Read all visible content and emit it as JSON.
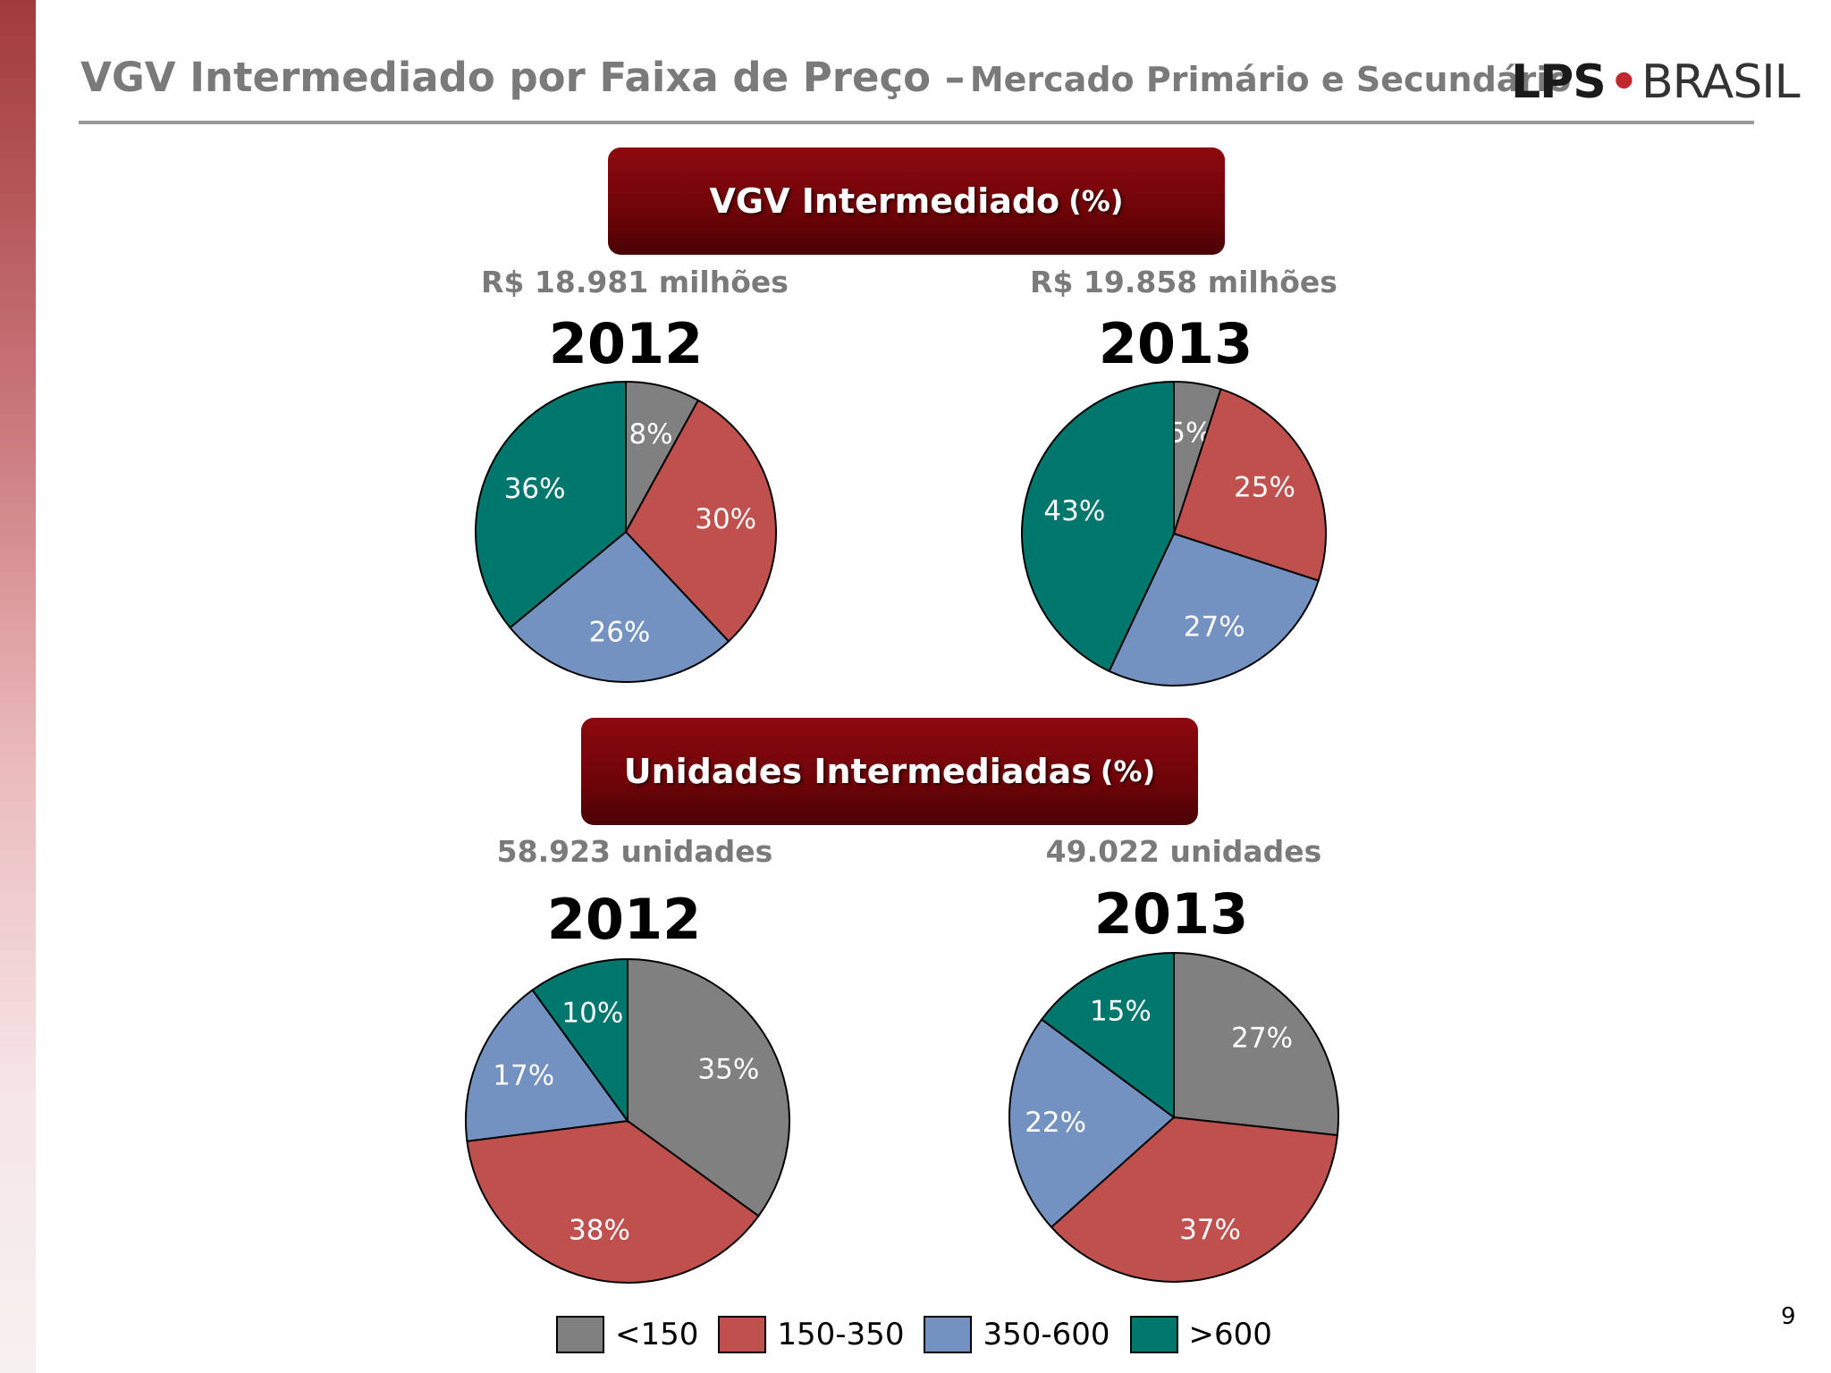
{
  "header": {
    "title_main": "VGV Intermediado por Faixa de Preço –",
    "title_sub": "Mercado Primário e Secundário",
    "logo_lps": "LPS",
    "logo_dot": "•",
    "logo_brasil": "BRASIL"
  },
  "sections": [
    {
      "banner": "VGV Intermediado",
      "banner_unit": "(%)"
    },
    {
      "banner": "Unidades Intermediadas",
      "banner_unit": "(%)"
    }
  ],
  "colors": {
    "lt150": "#808080",
    "r150_350": "#c0504d",
    "r350_600": "#7391c1",
    "gt600": "#00776d",
    "banner": "#7a060b",
    "accent": "#c1272d"
  },
  "legend": [
    {
      "label": "<150",
      "color": "#808080"
    },
    {
      "label": "150-350",
      "color": "#c0504d"
    },
    {
      "label": "350-600",
      "color": "#7391c1"
    },
    {
      "label": ">600",
      "color": "#00776d"
    }
  ],
  "chart_data": [
    {
      "type": "pie",
      "section": "VGV Intermediado (%)",
      "title": "2012",
      "subtitle": "R$ 18.981 milhões",
      "categories": [
        "<150",
        "150-350",
        "350-600",
        ">600"
      ],
      "values": [
        8,
        30,
        26,
        36
      ],
      "labels": [
        "8%",
        "30%",
        "26%",
        "36%"
      ]
    },
    {
      "type": "pie",
      "section": "VGV Intermediado (%)",
      "title": "2013",
      "subtitle": "R$ 19.858 milhões",
      "categories": [
        "<150",
        "150-350",
        "350-600",
        ">600"
      ],
      "values": [
        5,
        25,
        27,
        43
      ],
      "labels": [
        "5%",
        "25%",
        "27%",
        "43%"
      ]
    },
    {
      "type": "pie",
      "section": "Unidades Intermediadas (%)",
      "title": "2012",
      "subtitle": "58.923 unidades",
      "categories": [
        "<150",
        "150-350",
        "350-600",
        ">600"
      ],
      "values": [
        35,
        38,
        17,
        10
      ],
      "labels": [
        "35%",
        "38%",
        "17%",
        "10%"
      ]
    },
    {
      "type": "pie",
      "section": "Unidades Intermediadas (%)",
      "title": "2013",
      "subtitle": "49.022 unidades",
      "categories": [
        "<150",
        "150-350",
        "350-600",
        ">600"
      ],
      "values": [
        27,
        37,
        22,
        15
      ],
      "labels": [
        "27%",
        "37%",
        "22%",
        "15%"
      ]
    }
  ],
  "page_number": "9"
}
